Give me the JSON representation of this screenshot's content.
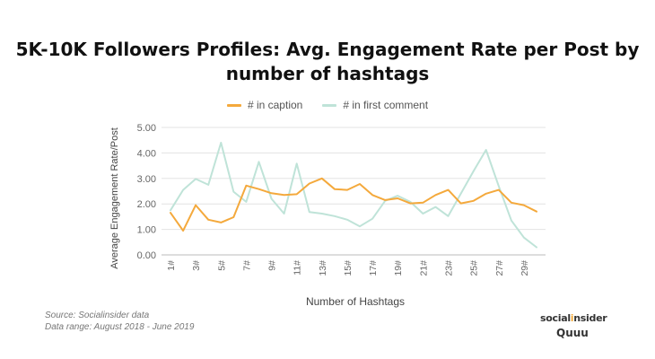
{
  "chart_data": {
    "type": "line",
    "title_line1": "5K-10K Followers Profiles: Avg. Engagement Rate per Post by",
    "title_line2": "number of hashtags",
    "xlabel": "Number of Hashtags",
    "ylabel": "Average Engagement Rate/Post",
    "ylim": [
      0,
      5
    ],
    "yticks": [
      "0.00",
      "1.00",
      "2.00",
      "3.00",
      "4.00",
      "5.00"
    ],
    "categories": [
      "1#",
      "2#",
      "3#",
      "4#",
      "5#",
      "6#",
      "7#",
      "8#",
      "9#",
      "10#",
      "11#",
      "12#",
      "13#",
      "14#",
      "15#",
      "16#",
      "17#",
      "18#",
      "19#",
      "20#",
      "21#",
      "22#",
      "23#",
      "24#",
      "25#",
      "26#",
      "27#",
      "28#",
      "29#",
      "30#"
    ],
    "xtick_labels": [
      "1#",
      "3#",
      "5#",
      "7#",
      "9#",
      "11#",
      "13#",
      "15#",
      "17#",
      "19#",
      "21#",
      "23#",
      "25#",
      "27#",
      "29#"
    ],
    "grid": true,
    "legend_position": "top",
    "series": [
      {
        "name": "# in caption",
        "color": "#f4a93c",
        "values": [
          1.65,
          0.95,
          1.95,
          1.38,
          1.27,
          1.48,
          2.72,
          2.58,
          2.42,
          2.35,
          2.38,
          2.8,
          3.0,
          2.58,
          2.55,
          2.78,
          2.35,
          2.15,
          2.22,
          2.02,
          2.05,
          2.35,
          2.55,
          2.02,
          2.12,
          2.4,
          2.55,
          2.05,
          1.95,
          1.7
        ]
      },
      {
        "name": "# in first comment",
        "color": "#bfe3d8",
        "values": [
          1.75,
          2.55,
          2.98,
          2.75,
          4.4,
          2.48,
          2.08,
          3.65,
          2.2,
          1.62,
          3.58,
          1.68,
          1.62,
          1.52,
          1.38,
          1.12,
          1.42,
          2.12,
          2.32,
          2.08,
          1.62,
          1.88,
          1.52,
          2.4,
          3.28,
          4.12,
          2.7,
          1.35,
          0.68,
          0.3
        ]
      }
    ]
  },
  "footer": {
    "source": "Source: Socialinsider data",
    "range": "Data range: August 2018 - June 2019"
  },
  "logo": {
    "brand_pre": "social",
    "brand_dot": "i",
    "brand_post": "nsider",
    "partner": "Quuu"
  }
}
